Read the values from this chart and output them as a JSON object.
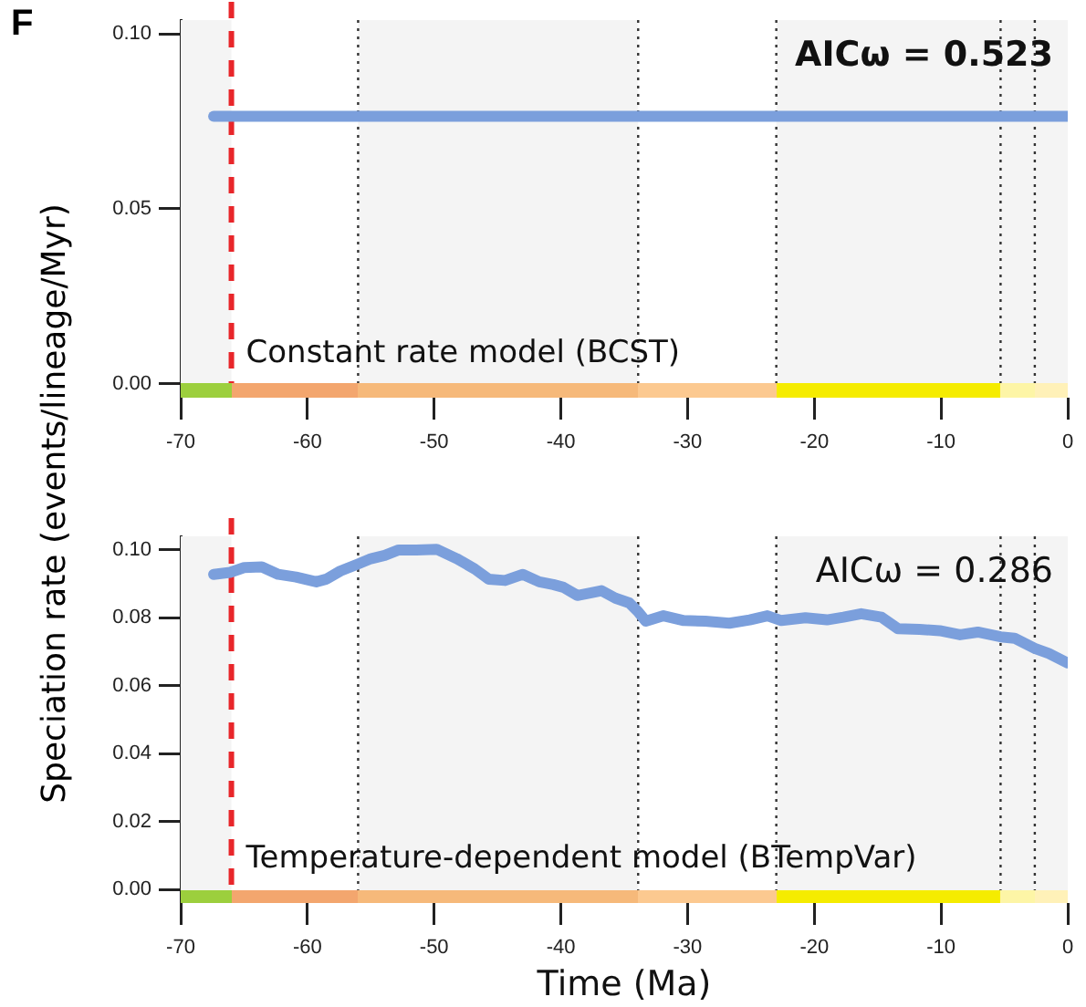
{
  "chart_data": [
    {
      "type": "line",
      "title": "F",
      "xlim": [
        -70,
        0
      ],
      "xticks": [
        -70,
        -60,
        -50,
        -40,
        -30,
        -20,
        -10,
        0
      ],
      "ylim": [
        -0.004,
        0.104
      ],
      "yticks": [
        {
          "value": 0,
          "label": "0.00"
        },
        {
          "value": 0.05,
          "label": "0.05"
        },
        {
          "value": 0.1,
          "label": "0.10"
        }
      ],
      "grid": false,
      "legend": false,
      "marker": "none",
      "series": [
        {
          "color": "#7b9fdc",
          "x": [
            -67.4,
            0
          ],
          "values": [
            0.0765,
            0.0765
          ]
        }
      ],
      "ref_lines": [
        {
          "axis": "x",
          "value": -66,
          "color": "#e8262a",
          "line_style": "dashed"
        },
        {
          "axis": "x",
          "value": -56,
          "color": "#333333",
          "line_style": "dotted"
        },
        {
          "axis": "x",
          "value": -33.9,
          "color": "#333333",
          "line_style": "dotted"
        },
        {
          "axis": "x",
          "value": -23,
          "color": "#333333",
          "line_style": "dotted"
        },
        {
          "axis": "x",
          "value": -5.3,
          "color": "#333333",
          "line_style": "dotted"
        },
        {
          "axis": "x",
          "value": -2.6,
          "color": "#333333",
          "line_style": "dotted"
        }
      ],
      "bands": [
        {
          "axis": "x",
          "from": -70,
          "to": -66,
          "color": "#f4f4f4"
        },
        {
          "axis": "x",
          "from": -56,
          "to": -33.9,
          "color": "#f4f4f4"
        },
        {
          "axis": "x",
          "from": -23,
          "to": 0,
          "color": "#f4f4f4"
        }
      ],
      "annotations": [
        "AICω = 0.523",
        "Constant rate model (BCST)"
      ]
    },
    {
      "type": "line",
      "xlabel": "Time (Ma)",
      "ylabel": "Speciation rate (events/lineage/Myr)",
      "xlim": [
        -70,
        0
      ],
      "xticks": [
        -70,
        -60,
        -50,
        -40,
        -30,
        -20,
        -10,
        0
      ],
      "ylim": [
        -0.004,
        0.104
      ],
      "yticks": [
        {
          "value": 0,
          "label": "0.00"
        },
        {
          "value": 0.02,
          "label": "0.02"
        },
        {
          "value": 0.04,
          "label": "0.04"
        },
        {
          "value": 0.06,
          "label": "0.06"
        },
        {
          "value": 0.08,
          "label": "0.08"
        },
        {
          "value": 0.1,
          "label": "0.10"
        }
      ],
      "grid": false,
      "legend": false,
      "marker": "none",
      "series": [
        {
          "color": "#7b9fdc",
          "x": [
            -67.4,
            -66.1,
            -65,
            -63.6,
            -62.3,
            -60.9,
            -59.3,
            -58.5,
            -57.4,
            -55.9,
            -55,
            -53.9,
            -52.8,
            -51.4,
            -49.8,
            -48.2,
            -46.8,
            -45.7,
            -44.4,
            -43,
            -41.7,
            -40.6,
            -39.8,
            -38.7,
            -37.6,
            -36.8,
            -35.7,
            -34.6,
            -33.9,
            -33.3,
            -31.9,
            -30.3,
            -28.6,
            -26.7,
            -25.1,
            -23.7,
            -22.6,
            -20.7,
            -19,
            -17.7,
            -16.3,
            -14.7,
            -13.4,
            -11.7,
            -10.1,
            -8.5,
            -7.1,
            -5.3,
            -4.2,
            -2.6,
            -1.5,
            0
          ],
          "values": [
            0.0928,
            0.0934,
            0.0948,
            0.095,
            0.0928,
            0.092,
            0.0906,
            0.0914,
            0.0938,
            0.096,
            0.0974,
            0.0984,
            0.1,
            0.1,
            0.1002,
            0.0974,
            0.0944,
            0.0914,
            0.091,
            0.0928,
            0.0906,
            0.0898,
            0.089,
            0.0866,
            0.0874,
            0.088,
            0.0858,
            0.0844,
            0.0818,
            0.079,
            0.0806,
            0.0792,
            0.079,
            0.0784,
            0.0794,
            0.0806,
            0.0792,
            0.08,
            0.0794,
            0.0802,
            0.0812,
            0.0802,
            0.0768,
            0.0766,
            0.0762,
            0.075,
            0.0758,
            0.0744,
            0.074,
            0.071,
            0.0695,
            0.0667
          ]
        }
      ],
      "ref_lines": [
        {
          "axis": "x",
          "value": -66,
          "color": "#e8262a",
          "line_style": "dashed"
        },
        {
          "axis": "x",
          "value": -56,
          "color": "#333333",
          "line_style": "dotted"
        },
        {
          "axis": "x",
          "value": -33.9,
          "color": "#333333",
          "line_style": "dotted"
        },
        {
          "axis": "x",
          "value": -23,
          "color": "#333333",
          "line_style": "dotted"
        },
        {
          "axis": "x",
          "value": -5.3,
          "color": "#333333",
          "line_style": "dotted"
        },
        {
          "axis": "x",
          "value": -2.6,
          "color": "#333333",
          "line_style": "dotted"
        }
      ],
      "bands": [
        {
          "axis": "x",
          "from": -70,
          "to": -66,
          "color": "#f4f4f4"
        },
        {
          "axis": "x",
          "from": -56,
          "to": -33.9,
          "color": "#f4f4f4"
        },
        {
          "axis": "x",
          "from": -23,
          "to": 0,
          "color": "#f4f4f4"
        }
      ],
      "annotations": [
        "AICω = 0.286",
        "Temperature-dependent model (BTempVar)"
      ]
    }
  ]
}
